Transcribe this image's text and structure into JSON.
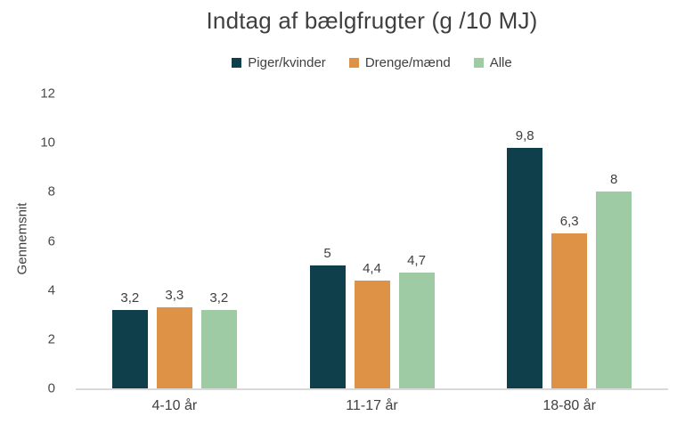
{
  "title": "Indtag af bælgfrugter (g /10 MJ)",
  "colors": {
    "text": "#404040",
    "title_text": "#3f3f3f",
    "axis_line": "#d9d9d9",
    "series_dark_teal": "#0f3f4a",
    "series_orange": "#dd9245",
    "series_light_green": "#9ecba4"
  },
  "chart_data": {
    "type": "bar",
    "title": "Indtag af bælgfrugter (g /10 MJ)",
    "categories": [
      "4-10 år",
      "11-17 år",
      "18-80 år"
    ],
    "series": [
      {
        "name": "Piger/kvinder",
        "color": "#0f3f4a",
        "values": [
          3.2,
          5,
          9.8
        ],
        "labels": [
          "3,2",
          "5",
          "9,8"
        ]
      },
      {
        "name": "Drenge/mænd",
        "color": "#dd9245",
        "values": [
          3.3,
          4.4,
          6.3
        ],
        "labels": [
          "3,3",
          "4,4",
          "6,3"
        ]
      },
      {
        "name": "Alle",
        "color": "#9ecba4",
        "values": [
          3.2,
          4.7,
          8
        ],
        "labels": [
          "3,2",
          "4,7",
          "8"
        ]
      }
    ],
    "xlabel": "",
    "ylabel": "Gennemsnit",
    "ylim": [
      0,
      12
    ],
    "ytick_step": 2,
    "yticks": [
      0,
      2,
      4,
      6,
      8,
      10,
      12
    ],
    "grid": false,
    "legend_position": "top"
  }
}
